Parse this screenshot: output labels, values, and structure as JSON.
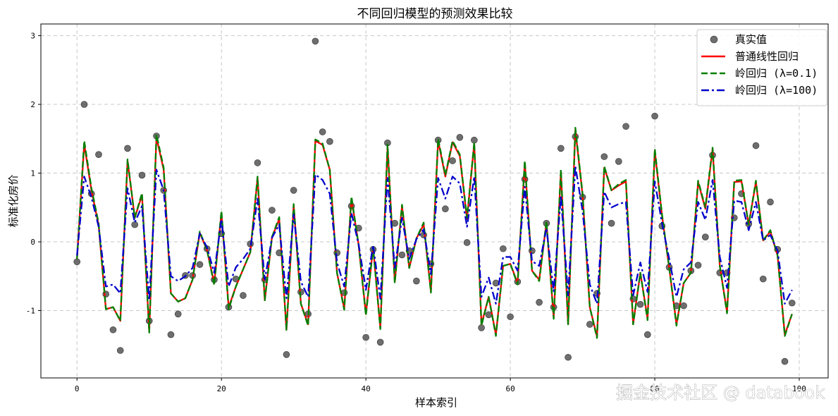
{
  "watermark": "掘金技术社区 @ databook",
  "chart_data": {
    "type": "line",
    "title": "不同回归模型的预测效果比较",
    "xlabel": "样本索引",
    "ylabel": "标准化房价",
    "xlim": [
      -5,
      104
    ],
    "ylim": [
      -1.98,
      3.17
    ],
    "xticks": [
      0,
      20,
      40,
      60,
      80,
      100
    ],
    "xtick_labels": [
      "0",
      "20",
      "40",
      "60",
      "80",
      "100"
    ],
    "yticks": [
      -1,
      0,
      1,
      2,
      3
    ],
    "ytick_labels": [
      "-1",
      "0",
      "1",
      "2",
      "3"
    ],
    "grid": true,
    "legend_position": "top-right",
    "x": [
      0,
      1,
      2,
      3,
      4,
      5,
      6,
      7,
      8,
      9,
      10,
      11,
      12,
      13,
      14,
      15,
      16,
      17,
      18,
      19,
      20,
      21,
      22,
      23,
      24,
      25,
      26,
      27,
      28,
      29,
      30,
      31,
      32,
      33,
      34,
      35,
      36,
      37,
      38,
      39,
      40,
      41,
      42,
      43,
      44,
      45,
      46,
      47,
      48,
      49,
      50,
      51,
      52,
      53,
      54,
      55,
      56,
      57,
      58,
      59,
      60,
      61,
      62,
      63,
      64,
      65,
      66,
      67,
      68,
      69,
      70,
      71,
      72,
      73,
      74,
      75,
      76,
      77,
      78,
      79,
      80,
      81,
      82,
      83,
      84,
      85,
      86,
      87,
      88,
      89,
      90,
      91,
      92,
      93,
      94,
      95,
      96,
      97,
      98,
      99
    ],
    "series": [
      {
        "name": "真实值",
        "kind": "scatter",
        "color": "#555555",
        "values": [
          -0.29,
          2.0,
          0.7,
          1.27,
          -0.76,
          -1.28,
          -1.58,
          1.36,
          0.25,
          0.97,
          -1.15,
          1.54,
          0.75,
          -1.35,
          -1.05,
          -0.49,
          -0.49,
          -0.33,
          -0.1,
          -0.55,
          0.12,
          -0.95,
          -0.54,
          -0.78,
          -0.03,
          1.15,
          -0.55,
          0.46,
          -0.16,
          -1.64,
          0.75,
          -0.73,
          -1.05,
          2.92,
          1.6,
          1.46,
          -0.16,
          -0.74,
          0.52,
          0.2,
          -1.39,
          -0.11,
          -1.46,
          1.44,
          0.27,
          -0.19,
          -0.13,
          -0.57,
          0.1,
          -0.32,
          1.48,
          0.48,
          1.18,
          1.52,
          -0.01,
          1.48,
          -1.25,
          -1.06,
          -0.6,
          -0.1,
          -1.09,
          -0.58,
          0.91,
          -0.13,
          -0.88,
          0.27,
          -0.95,
          1.36,
          -1.68,
          1.53,
          0.65,
          -1.2,
          -0.75,
          1.24,
          0.27,
          1.17,
          1.68,
          -0.83,
          -0.91,
          -1.35,
          1.83,
          0.23,
          -0.37,
          -0.93,
          -0.93,
          -0.42,
          -0.34,
          0.07,
          1.26,
          -0.45,
          -0.45,
          0.35,
          0.7,
          0.26,
          1.4,
          -0.54,
          0.58,
          -0.11,
          -1.74,
          -0.89
        ]
      },
      {
        "name": "普通线性回归",
        "kind": "line",
        "color": "#ff0000",
        "values": [
          -0.25,
          1.42,
          0.75,
          0.24,
          -0.98,
          -0.95,
          -1.15,
          1.18,
          0.35,
          0.68,
          -1.3,
          1.52,
          1.05,
          -0.75,
          -0.87,
          -0.82,
          -0.55,
          0.13,
          -0.12,
          -0.6,
          0.42,
          -0.95,
          -0.65,
          -0.4,
          -0.15,
          0.93,
          -0.85,
          0.07,
          0.33,
          -1.28,
          0.53,
          -0.9,
          -1.2,
          1.47,
          1.41,
          1.05,
          -0.45,
          -0.97,
          0.63,
          -0.05,
          -1.05,
          -0.08,
          -1.25,
          1.38,
          -0.58,
          0.52,
          -0.38,
          0.05,
          0.25,
          -0.72,
          1.47,
          0.95,
          1.45,
          1.25,
          0.33,
          1.43,
          -1.2,
          -0.8,
          -1.35,
          -0.35,
          -0.32,
          -0.6,
          1.15,
          -0.42,
          -0.55,
          0.28,
          -1.1,
          1.02,
          -1.2,
          1.63,
          0.68,
          -0.95,
          -1.38,
          1.08,
          0.75,
          0.82,
          0.88,
          -1.2,
          -0.45,
          -1.12,
          1.32,
          0.38,
          -0.38,
          -1.2,
          -0.6,
          -0.45,
          0.87,
          0.48,
          1.35,
          -0.35,
          -1.02,
          0.87,
          0.88,
          0.25,
          0.87,
          0.02,
          0.15,
          -0.2,
          -1.35,
          -1.05
        ]
      },
      {
        "name": "岭回归 (λ=0.1)",
        "kind": "line",
        "color": "#008000",
        "dash": "dashed",
        "values": [
          -0.25,
          1.47,
          0.78,
          0.27,
          -0.98,
          -0.95,
          -1.15,
          1.2,
          0.35,
          0.71,
          -1.32,
          1.56,
          1.08,
          -0.75,
          -0.87,
          -0.82,
          -0.55,
          0.15,
          -0.12,
          -0.63,
          0.45,
          -0.98,
          -0.65,
          -0.4,
          -0.15,
          0.95,
          -0.85,
          0.07,
          0.36,
          -1.28,
          0.55,
          -0.9,
          -1.22,
          1.49,
          1.43,
          1.05,
          -0.45,
          -0.99,
          0.66,
          -0.05,
          -1.07,
          -0.08,
          -1.27,
          1.42,
          -0.6,
          0.54,
          -0.38,
          0.05,
          0.28,
          -0.74,
          1.5,
          0.97,
          1.47,
          1.27,
          0.35,
          1.45,
          -1.22,
          -0.8,
          -1.37,
          -0.35,
          -0.32,
          -0.62,
          1.18,
          -0.42,
          -0.57,
          0.3,
          -1.12,
          1.05,
          -1.2,
          1.66,
          0.7,
          -0.95,
          -1.4,
          1.1,
          0.75,
          0.84,
          0.9,
          -1.2,
          -0.45,
          -1.14,
          1.35,
          0.4,
          -0.38,
          -1.22,
          -0.6,
          -0.45,
          0.89,
          0.5,
          1.37,
          -0.35,
          -1.04,
          0.89,
          0.9,
          0.25,
          0.89,
          0.02,
          0.17,
          -0.2,
          -1.37,
          -1.05
        ]
      },
      {
        "name": "岭回归 (λ=100)",
        "kind": "line",
        "color": "#0000cc",
        "dash": "dashdot",
        "values": [
          -0.2,
          0.95,
          0.65,
          0.22,
          -0.65,
          -0.62,
          -0.75,
          0.78,
          0.28,
          0.52,
          -0.85,
          1.05,
          0.75,
          -0.5,
          -0.57,
          -0.5,
          -0.38,
          0.12,
          -0.08,
          -0.45,
          0.33,
          -0.65,
          -0.37,
          -0.25,
          -0.1,
          0.63,
          -0.55,
          0.06,
          0.25,
          -0.82,
          0.4,
          -0.58,
          -0.8,
          0.98,
          0.9,
          0.7,
          -0.3,
          -0.65,
          0.42,
          -0.04,
          -0.7,
          -0.05,
          -0.83,
          0.93,
          -0.38,
          0.35,
          -0.25,
          0.04,
          0.18,
          -0.47,
          0.93,
          0.63,
          0.95,
          0.85,
          0.22,
          0.95,
          -0.8,
          -0.52,
          -0.9,
          -0.22,
          -0.22,
          -0.42,
          0.8,
          -0.28,
          -0.35,
          0.2,
          -0.72,
          0.67,
          -0.78,
          1.1,
          0.45,
          -0.62,
          -0.9,
          0.73,
          0.5,
          0.55,
          0.58,
          -0.78,
          -0.3,
          -0.73,
          0.88,
          0.27,
          -0.25,
          -0.8,
          -0.4,
          -0.3,
          0.58,
          0.32,
          0.9,
          -0.22,
          -0.67,
          0.6,
          0.58,
          0.17,
          0.58,
          0.02,
          0.1,
          -0.13,
          -0.9,
          -0.7
        ]
      }
    ]
  }
}
